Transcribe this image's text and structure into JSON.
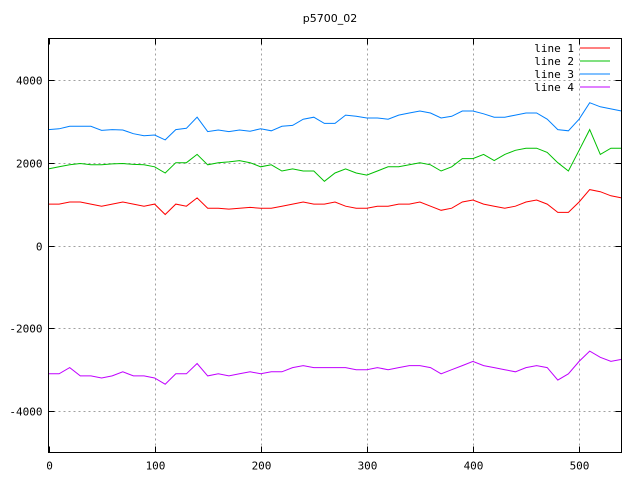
{
  "chart_data": {
    "type": "line",
    "title": "p5700_02",
    "xlabel": "",
    "ylabel": "",
    "xlim": [
      0,
      540
    ],
    "ylim": [
      -5000,
      5000
    ],
    "grid": true,
    "legend_position": "top-right",
    "x_ticks": [
      0,
      100,
      200,
      300,
      400,
      500
    ],
    "y_ticks": [
      -4000,
      -2000,
      0,
      2000,
      4000
    ],
    "x": [
      0,
      10,
      20,
      30,
      40,
      50,
      60,
      70,
      80,
      90,
      100,
      110,
      120,
      130,
      140,
      150,
      160,
      170,
      180,
      190,
      200,
      210,
      220,
      230,
      240,
      250,
      260,
      270,
      280,
      290,
      300,
      310,
      320,
      330,
      340,
      350,
      360,
      370,
      380,
      390,
      400,
      410,
      420,
      430,
      440,
      450,
      460,
      470,
      480,
      490,
      500,
      510,
      520,
      530,
      540
    ],
    "series": [
      {
        "name": "line 1",
        "color": "#ff0000",
        "values": [
          1000,
          1000,
          1050,
          1050,
          1000,
          950,
          1000,
          1050,
          1000,
          950,
          1000,
          750,
          1000,
          950,
          1150,
          900,
          900,
          880,
          900,
          920,
          900,
          900,
          950,
          1000,
          1050,
          1000,
          1000,
          1050,
          950,
          900,
          900,
          950,
          950,
          1000,
          1000,
          1050,
          950,
          850,
          900,
          1050,
          1100,
          1000,
          950,
          900,
          950,
          1050,
          1100,
          1000,
          800,
          800,
          1050,
          1350,
          1300,
          1200,
          1150
        ]
      },
      {
        "name": "line 2",
        "color": "#00c000",
        "values": [
          1850,
          1900,
          1950,
          1980,
          1950,
          1950,
          1970,
          1980,
          1960,
          1950,
          1900,
          1750,
          2000,
          2000,
          2200,
          1950,
          2000,
          2020,
          2050,
          2000,
          1900,
          1950,
          1800,
          1850,
          1800,
          1800,
          1550,
          1750,
          1850,
          1750,
          1700,
          1800,
          1900,
          1900,
          1950,
          2000,
          1950,
          1800,
          1900,
          2100,
          2100,
          2200,
          2050,
          2200,
          2300,
          2350,
          2350,
          2250,
          2000,
          1800,
          2300,
          2800,
          2200,
          2350,
          2350
        ]
      },
      {
        "name": "line 3",
        "color": "#0080ff",
        "values": [
          2800,
          2820,
          2880,
          2880,
          2880,
          2780,
          2800,
          2790,
          2700,
          2650,
          2670,
          2550,
          2800,
          2830,
          3100,
          2750,
          2790,
          2750,
          2790,
          2760,
          2820,
          2770,
          2880,
          2900,
          3050,
          3100,
          2950,
          2950,
          3150,
          3120,
          3080,
          3080,
          3050,
          3150,
          3200,
          3250,
          3200,
          3080,
          3120,
          3250,
          3250,
          3180,
          3100,
          3100,
          3150,
          3200,
          3200,
          3050,
          2800,
          2770,
          3050,
          3450,
          3350,
          3300,
          3250
        ]
      },
      {
        "name": "line 4",
        "color": "#c000ff",
        "values": [
          -3100,
          -3100,
          -2950,
          -3150,
          -3150,
          -3200,
          -3150,
          -3050,
          -3150,
          -3150,
          -3200,
          -3350,
          -3100,
          -3100,
          -2850,
          -3150,
          -3100,
          -3150,
          -3100,
          -3050,
          -3100,
          -3050,
          -3050,
          -2950,
          -2900,
          -2950,
          -2950,
          -2950,
          -2950,
          -3000,
          -3000,
          -2950,
          -3000,
          -2950,
          -2900,
          -2900,
          -2950,
          -3100,
          -3000,
          -2900,
          -2800,
          -2900,
          -2950,
          -3000,
          -3050,
          -2950,
          -2900,
          -2950,
          -3250,
          -3100,
          -2800,
          -2550,
          -2700,
          -2800,
          -2750
        ]
      }
    ]
  }
}
